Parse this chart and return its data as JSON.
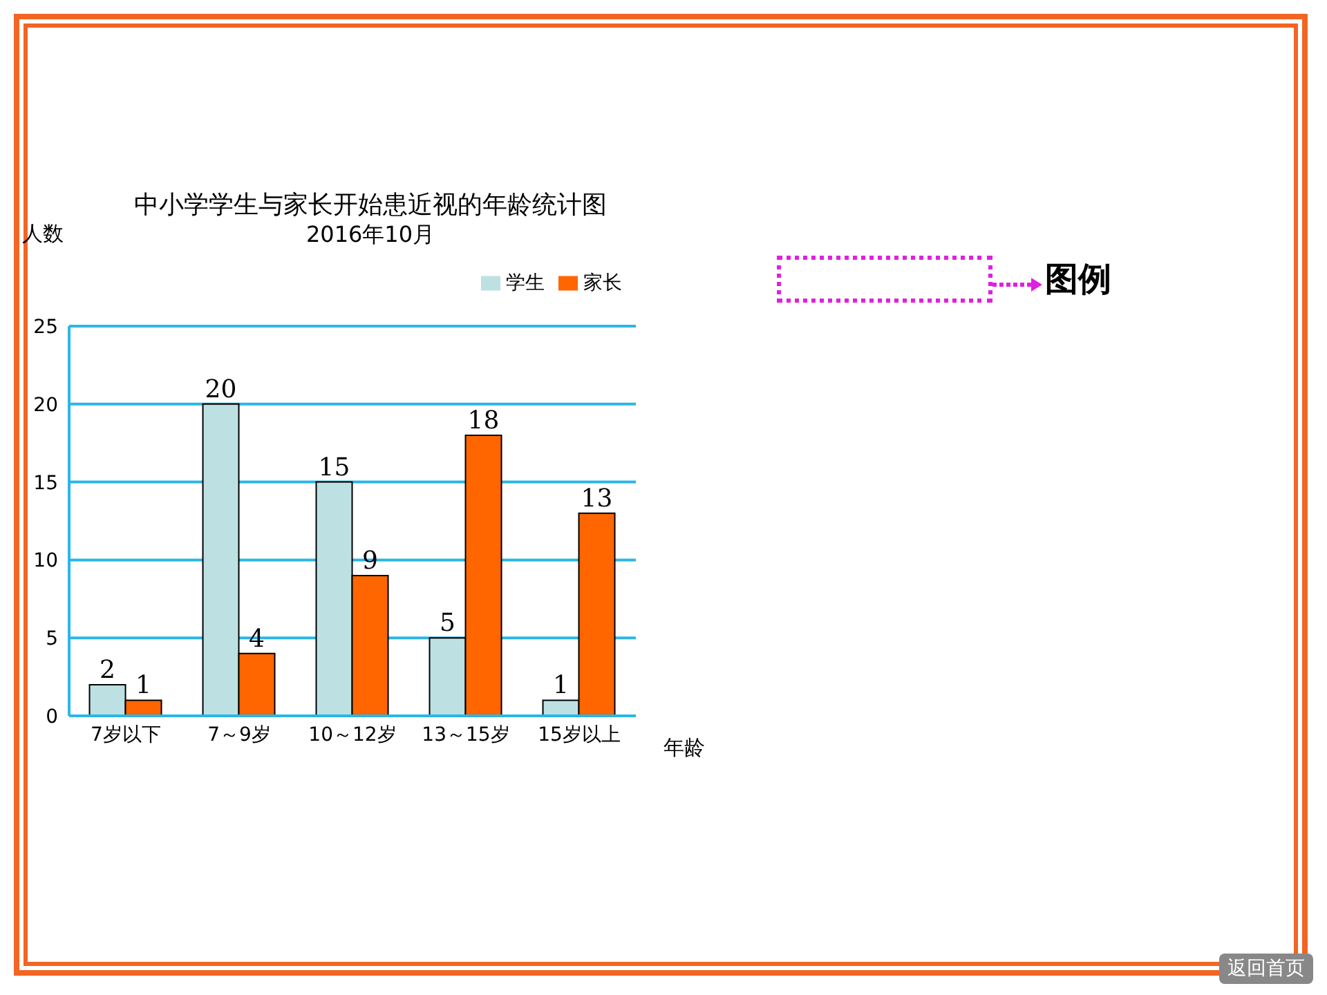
{
  "chart_data": {
    "type": "bar",
    "title": "中小学学生与家长开始患近视的年龄统计图",
    "subtitle": "2016年10月",
    "xlabel": "年龄",
    "ylabel": "人数",
    "categories": [
      "7岁以下",
      "7～9岁",
      "10～12岁",
      "13～15岁",
      "15岁以上"
    ],
    "series": [
      {
        "name": "学生",
        "color": "#bde0e3",
        "values": [
          2,
          20,
          15,
          5,
          1
        ]
      },
      {
        "name": "家长",
        "color": "#ff6600",
        "values": [
          1,
          4,
          9,
          18,
          13
        ]
      }
    ],
    "ylim": [
      0,
      25
    ],
    "yticks": [
      0,
      5,
      10,
      15,
      20,
      25
    ],
    "grid": "y",
    "legend": "top right",
    "data_labels": true,
    "annotations": [
      "图例",
      "返回首页"
    ]
  }
}
